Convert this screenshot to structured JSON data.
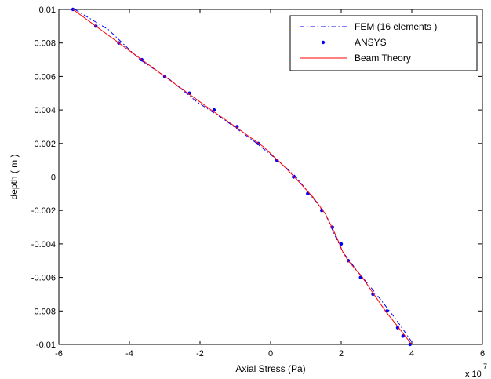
{
  "chart_data": {
    "type": "line",
    "xlabel": "Axial Stress (Pa)",
    "ylabel": "depth ( m )",
    "x_multiplier_label": "x 10",
    "x_multiplier_exp": "7",
    "x_scale": 10000000,
    "xlim": [
      -6,
      6
    ],
    "ylim": [
      -0.01,
      0.01
    ],
    "x_ticks": [
      -6,
      -4,
      -2,
      0,
      2,
      4,
      6
    ],
    "x_tick_labels": [
      "-6",
      "-4",
      "-2",
      "0",
      "2",
      "4",
      "6"
    ],
    "y_ticks": [
      0.01,
      0.008,
      0.006,
      0.004,
      0.002,
      0,
      -0.002,
      -0.004,
      -0.006,
      -0.008,
      -0.01
    ],
    "y_tick_labels": [
      "0.01",
      "0.008",
      "0.006",
      "0.004",
      "0.002",
      "0",
      "-0.002",
      "-0.004",
      "-0.006",
      "-0.008",
      "-0.01"
    ],
    "grid": false,
    "legend_position": "top-right",
    "series": [
      {
        "name": "FEM (16 elements )",
        "style": "dash-dot",
        "color": "#0000ff",
        "points": [
          [
            -5.55,
            0.01
          ],
          [
            -4.6,
            0.0088
          ],
          [
            -3.7,
            0.007
          ],
          [
            -2.85,
            0.0058
          ],
          [
            -2.1,
            0.0045
          ],
          [
            -1.3,
            0.0034
          ],
          [
            -0.45,
            0.0021
          ],
          [
            0.2,
            0.001
          ],
          [
            0.68,
            0.0001
          ],
          [
            1.1,
            -0.001
          ],
          [
            1.55,
            -0.0022
          ],
          [
            1.78,
            -0.0033
          ],
          [
            2.05,
            -0.0045
          ],
          [
            2.45,
            -0.0056
          ],
          [
            3.0,
            -0.007
          ],
          [
            3.55,
            -0.0085
          ],
          [
            4.05,
            -0.01
          ]
        ]
      },
      {
        "name": "ANSYS",
        "style": "dots",
        "color": "#0000ff",
        "points": [
          [
            -5.6,
            0.01
          ],
          [
            -4.95,
            0.009
          ],
          [
            -4.3,
            0.008
          ],
          [
            -3.65,
            0.007
          ],
          [
            -3.0,
            0.006
          ],
          [
            -2.3,
            0.005
          ],
          [
            -1.6,
            0.004
          ],
          [
            -0.95,
            0.003
          ],
          [
            -0.35,
            0.002
          ],
          [
            0.18,
            0.001
          ],
          [
            0.65,
            0.0
          ],
          [
            1.05,
            -0.001
          ],
          [
            1.45,
            -0.002
          ],
          [
            1.75,
            -0.003
          ],
          [
            2.0,
            -0.004
          ],
          [
            2.2,
            -0.005
          ],
          [
            2.55,
            -0.006
          ],
          [
            2.9,
            -0.007
          ],
          [
            3.3,
            -0.008
          ],
          [
            3.6,
            -0.009
          ],
          [
            3.75,
            -0.0095
          ],
          [
            3.95,
            -0.01
          ]
        ]
      },
      {
        "name": "Beam Theory",
        "style": "solid",
        "color": "#ff0000",
        "points": [
          [
            -5.6,
            0.01
          ],
          [
            -4.3,
            0.008
          ],
          [
            -3.0,
            0.006
          ],
          [
            -1.75,
            0.0041
          ],
          [
            -1.0,
            0.003
          ],
          [
            -0.2,
            0.0018
          ],
          [
            0.4,
            0.0006
          ],
          [
            0.85,
            -0.0004
          ],
          [
            1.2,
            -0.0012
          ],
          [
            1.55,
            -0.0022
          ],
          [
            1.85,
            -0.0035
          ],
          [
            2.05,
            -0.0045
          ],
          [
            2.2,
            -0.005
          ],
          [
            2.6,
            -0.006
          ],
          [
            3.25,
            -0.008
          ],
          [
            4.0,
            -0.01
          ]
        ]
      }
    ]
  }
}
